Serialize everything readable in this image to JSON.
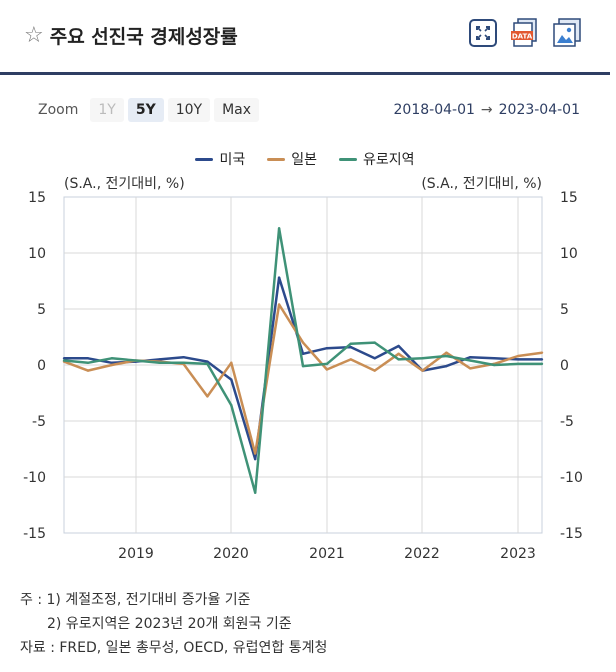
{
  "header": {
    "title": "주요 선진국 경제성장률",
    "icons": [
      "star-icon",
      "fullscreen-icon",
      "data-download-icon",
      "image-download-icon"
    ],
    "data_icon_text": "DATA"
  },
  "zoom": {
    "label": "Zoom",
    "options": [
      "1Y",
      "5Y",
      "10Y",
      "Max"
    ],
    "active": "5Y",
    "disabled": [
      "1Y"
    ]
  },
  "range": {
    "from": "2018-04-01",
    "arrow": "→",
    "to": "2023-04-01"
  },
  "chart_data": {
    "type": "line",
    "left_axis_label": "(S.A., 전기대비, %)",
    "right_axis_label": "(S.A., 전기대비, %)",
    "ylim": [
      -15,
      15
    ],
    "yticks": [
      "15",
      "10",
      "5",
      "0",
      "-5",
      "-10",
      "-15"
    ],
    "xticks": [
      "2019",
      "2020",
      "2021",
      "2022",
      "2023"
    ],
    "x": [
      "2018Q2",
      "2018Q3",
      "2018Q4",
      "2019Q1",
      "2019Q2",
      "2019Q3",
      "2019Q4",
      "2020Q1",
      "2020Q2",
      "2020Q3",
      "2020Q4",
      "2021Q1",
      "2021Q2",
      "2021Q3",
      "2021Q4",
      "2022Q1",
      "2022Q2",
      "2022Q3",
      "2022Q4",
      "2023Q1",
      "2023Q2"
    ],
    "series": [
      {
        "name": "미국",
        "color": "#2c4a8c",
        "values": [
          0.6,
          0.6,
          0.2,
          0.3,
          0.5,
          0.7,
          0.3,
          -1.3,
          -8.4,
          7.8,
          1.0,
          1.5,
          1.6,
          0.6,
          1.7,
          -0.5,
          -0.1,
          0.7,
          0.6,
          0.5,
          0.5
        ]
      },
      {
        "name": "일본",
        "color": "#c98e55",
        "values": [
          0.3,
          -0.5,
          0.0,
          0.4,
          0.3,
          0.1,
          -2.8,
          0.2,
          -7.9,
          5.4,
          2.0,
          -0.4,
          0.5,
          -0.5,
          1.0,
          -0.5,
          1.1,
          -0.3,
          0.1,
          0.8,
          1.1
        ]
      },
      {
        "name": "유로지역",
        "color": "#3f9277",
        "values": [
          0.4,
          0.2,
          0.6,
          0.4,
          0.2,
          0.2,
          0.1,
          -3.6,
          -11.4,
          12.2,
          -0.1,
          0.1,
          1.9,
          2.0,
          0.5,
          0.6,
          0.8,
          0.4,
          0.0,
          0.1,
          0.1
        ]
      }
    ]
  },
  "notes": {
    "line1": "주 : 1)  계절조정, 전기대비 증가율 기준",
    "line2": "2)  유로지역은 2023년 20개 회원국 기준",
    "line3": "자료 :  FRED, 일본 총무성, OECD, 유럽연합 통계청"
  }
}
